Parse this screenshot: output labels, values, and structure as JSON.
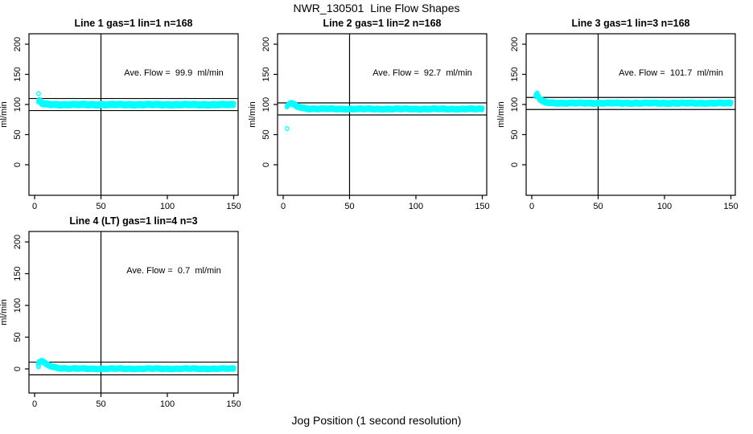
{
  "figure": {
    "title": "NWR_130501  Line Flow Shapes",
    "xlabel": "Jog Position (1 second resolution)",
    "ylabel": "ml/min",
    "point_color": "#00FFFF",
    "line_color": "#000000",
    "background_color": "#FFFFFF"
  },
  "chart_data": [
    {
      "type": "scatter",
      "title": "Line 1 gas=1 lin=1 n=168",
      "annotation": "Ave. Flow =  99.9  ml/min",
      "ave_flow": 99.9,
      "n": 168,
      "ylabel": "ml/min",
      "x_ticks": [
        0,
        50,
        100,
        150
      ],
      "y_ticks": [
        0,
        50,
        100,
        150,
        200
      ],
      "xlim": [
        0,
        155
      ],
      "ylim": [
        -50,
        215
      ],
      "ref_lines_y": [
        109.9,
        89.9
      ],
      "vline_x": 50,
      "series_profile": [
        [
          4,
          106
        ],
        [
          5,
          103
        ],
        [
          6,
          101.5
        ],
        [
          8,
          100.5
        ],
        [
          12,
          100
        ],
        [
          20,
          99.8
        ],
        [
          150,
          99.7
        ]
      ],
      "outliers": [
        [
          3,
          118
        ]
      ],
      "band_halfwidth": 3.2
    },
    {
      "type": "scatter",
      "title": "Line 2 gas=1 lin=2 n=168",
      "annotation": "Ave. Flow =  92.7  ml/min",
      "ave_flow": 92.7,
      "n": 168,
      "ylabel": "ml/min",
      "x_ticks": [
        0,
        50,
        100,
        150
      ],
      "y_ticks": [
        0,
        50,
        100,
        150,
        200
      ],
      "xlim": [
        0,
        155
      ],
      "ylim": [
        -50,
        215
      ],
      "ref_lines_y": [
        102.7,
        82.7
      ],
      "vline_x": 50,
      "series_profile": [
        [
          3,
          97
        ],
        [
          4,
          100
        ],
        [
          5,
          101.5
        ],
        [
          6,
          102
        ],
        [
          8,
          100
        ],
        [
          10,
          97
        ],
        [
          14,
          94.5
        ],
        [
          20,
          93
        ],
        [
          40,
          92.6
        ],
        [
          150,
          92.5
        ]
      ],
      "outliers": [
        [
          3,
          60
        ]
      ],
      "band_halfwidth": 2.6
    },
    {
      "type": "scatter",
      "title": "Line 3 gas=1 lin=3 n=168",
      "annotation": "Ave. Flow =  101.7  ml/min",
      "ave_flow": 101.7,
      "n": 168,
      "ylabel": "ml/min",
      "x_ticks": [
        0,
        50,
        100,
        150
      ],
      "y_ticks": [
        0,
        50,
        100,
        150,
        200
      ],
      "xlim": [
        0,
        155
      ],
      "ylim": [
        -50,
        215
      ],
      "ref_lines_y": [
        111.7,
        91.7
      ],
      "vline_x": 50,
      "series_profile": [
        [
          3,
          115
        ],
        [
          4,
          117.5
        ],
        [
          5,
          113
        ],
        [
          6,
          109
        ],
        [
          8,
          105.5
        ],
        [
          10,
          103.8
        ],
        [
          14,
          102.8
        ],
        [
          25,
          102.3
        ],
        [
          150,
          102.2
        ]
      ],
      "outliers": [],
      "band_halfwidth": 2.8
    },
    {
      "type": "scatter",
      "title": "Line 4 (LT) gas=1 lin=4 n=3",
      "annotation": "Ave. Flow =  0.7  ml/min",
      "ave_flow": 0.7,
      "n": 3,
      "ylabel": "ml/min",
      "x_ticks": [
        0,
        50,
        100,
        150
      ],
      "y_ticks": [
        0,
        50,
        100,
        150,
        200
      ],
      "xlim": [
        0,
        155
      ],
      "ylim": [
        -38,
        215
      ],
      "ref_lines_y": [
        10.7,
        -9.3
      ],
      "vline_x": 50,
      "series_profile": [
        [
          4,
          10
        ],
        [
          5,
          12.5
        ],
        [
          6,
          12
        ],
        [
          8,
          8.5
        ],
        [
          10,
          6
        ],
        [
          14,
          3
        ],
        [
          18,
          1.5
        ],
        [
          25,
          0.6
        ],
        [
          40,
          0.3
        ],
        [
          150,
          0.3
        ]
      ],
      "outliers": [
        [
          3,
          3
        ],
        [
          3,
          5.5
        ]
      ],
      "band_halfwidth": 2.2
    }
  ]
}
